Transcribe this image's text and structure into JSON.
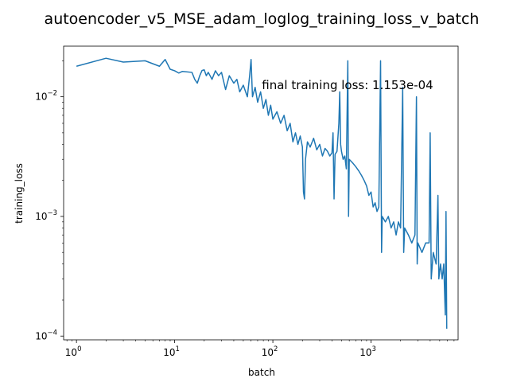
{
  "chart_data": {
    "type": "line",
    "title": "autoencoder_v5_MSE_adam_loglog_training_loss_v_batch",
    "xlabel": "batch",
    "ylabel": "training_loss",
    "xscale": "log",
    "yscale": "log",
    "xlim": [
      0.74,
      7700
    ],
    "ylim": [
      9.3e-05,
      0.0265
    ],
    "grid": false,
    "annotation": "final training loss: 1.153e-04",
    "x_ticks": [
      {
        "base": "10",
        "exp": "0",
        "value": 1
      },
      {
        "base": "10",
        "exp": "1",
        "value": 10
      },
      {
        "base": "10",
        "exp": "2",
        "value": 100
      },
      {
        "base": "10",
        "exp": "3",
        "value": 1000
      }
    ],
    "y_ticks": [
      {
        "base": "10",
        "exp": "−4",
        "value": 0.0001
      },
      {
        "base": "10",
        "exp": "−3",
        "value": 0.001
      },
      {
        "base": "10",
        "exp": "−2",
        "value": 0.01
      }
    ],
    "series": [
      {
        "color": "#1f77b4",
        "points": [
          [
            1,
            0.018
          ],
          [
            2,
            0.021
          ],
          [
            3,
            0.0195
          ],
          [
            5,
            0.02
          ],
          [
            7,
            0.018
          ],
          [
            8,
            0.0205
          ],
          [
            9,
            0.017
          ],
          [
            10,
            0.0165
          ],
          [
            11,
            0.0158
          ],
          [
            12,
            0.0163
          ],
          [
            15,
            0.016
          ],
          [
            16,
            0.014
          ],
          [
            17,
            0.013
          ],
          [
            18,
            0.015
          ],
          [
            19,
            0.0166
          ],
          [
            20,
            0.0168
          ],
          [
            21,
            0.015
          ],
          [
            22,
            0.016
          ],
          [
            24,
            0.014
          ],
          [
            26,
            0.0165
          ],
          [
            28,
            0.015
          ],
          [
            30,
            0.016
          ],
          [
            33,
            0.0115
          ],
          [
            36,
            0.015
          ],
          [
            40,
            0.013
          ],
          [
            43,
            0.014
          ],
          [
            46,
            0.011
          ],
          [
            50,
            0.0125
          ],
          [
            55,
            0.01
          ],
          [
            58,
            0.015
          ],
          [
            60,
            0.0205
          ],
          [
            62,
            0.01
          ],
          [
            66,
            0.012
          ],
          [
            70,
            0.009
          ],
          [
            75,
            0.011
          ],
          [
            80,
            0.008
          ],
          [
            85,
            0.0095
          ],
          [
            90,
            0.007
          ],
          [
            95,
            0.0085
          ],
          [
            100,
            0.0065
          ],
          [
            110,
            0.0075
          ],
          [
            120,
            0.006
          ],
          [
            130,
            0.007
          ],
          [
            140,
            0.0052
          ],
          [
            150,
            0.006
          ],
          [
            160,
            0.0042
          ],
          [
            170,
            0.005
          ],
          [
            180,
            0.004
          ],
          [
            190,
            0.0047
          ],
          [
            200,
            0.0038
          ],
          [
            205,
            0.0016
          ],
          [
            210,
            0.0014
          ],
          [
            215,
            0.003
          ],
          [
            225,
            0.0042
          ],
          [
            240,
            0.0038
          ],
          [
            260,
            0.0045
          ],
          [
            280,
            0.0036
          ],
          [
            300,
            0.004
          ],
          [
            320,
            0.0032
          ],
          [
            340,
            0.0037
          ],
          [
            360,
            0.0035
          ],
          [
            380,
            0.0032
          ],
          [
            400,
            0.0034
          ],
          [
            410,
            0.005
          ],
          [
            420,
            0.0014
          ],
          [
            430,
            0.0033
          ],
          [
            450,
            0.0035
          ],
          [
            470,
            0.006
          ],
          [
            480,
            0.011
          ],
          [
            490,
            0.004
          ],
          [
            500,
            0.0035
          ],
          [
            520,
            0.003
          ],
          [
            540,
            0.0032
          ],
          [
            560,
            0.0025
          ],
          [
            580,
            0.02
          ],
          [
            590,
            0.001
          ],
          [
            600,
            0.003
          ],
          [
            650,
            0.0028
          ],
          [
            700,
            0.0026
          ],
          [
            750,
            0.0024
          ],
          [
            800,
            0.0022
          ],
          [
            850,
            0.002
          ],
          [
            900,
            0.0018
          ],
          [
            950,
            0.0015
          ],
          [
            1000,
            0.0016
          ],
          [
            1050,
            0.0012
          ],
          [
            1100,
            0.0013
          ],
          [
            1150,
            0.0011
          ],
          [
            1200,
            0.0012
          ],
          [
            1250,
            0.02
          ],
          [
            1280,
            0.0005
          ],
          [
            1300,
            0.001
          ],
          [
            1400,
            0.0009
          ],
          [
            1500,
            0.001
          ],
          [
            1600,
            0.0008
          ],
          [
            1700,
            0.0009
          ],
          [
            1800,
            0.0007
          ],
          [
            1900,
            0.0009
          ],
          [
            2000,
            0.0008
          ],
          [
            2100,
            0.012
          ],
          [
            2150,
            0.0005
          ],
          [
            2200,
            0.0008
          ],
          [
            2400,
            0.0007
          ],
          [
            2600,
            0.0006
          ],
          [
            2800,
            0.0007
          ],
          [
            2900,
            0.01
          ],
          [
            2950,
            0.0004
          ],
          [
            3000,
            0.0006
          ],
          [
            3300,
            0.0005
          ],
          [
            3600,
            0.0006
          ],
          [
            3900,
            0.0006
          ],
          [
            4000,
            0.005
          ],
          [
            4100,
            0.0003
          ],
          [
            4300,
            0.0005
          ],
          [
            4600,
            0.0004
          ],
          [
            4800,
            0.0015
          ],
          [
            4900,
            0.0003
          ],
          [
            5100,
            0.0004
          ],
          [
            5300,
            0.0003
          ],
          [
            5500,
            0.0004
          ],
          [
            5700,
            0.00015
          ],
          [
            5800,
            0.0011
          ],
          [
            5900,
            0.000115
          ]
        ]
      }
    ]
  }
}
